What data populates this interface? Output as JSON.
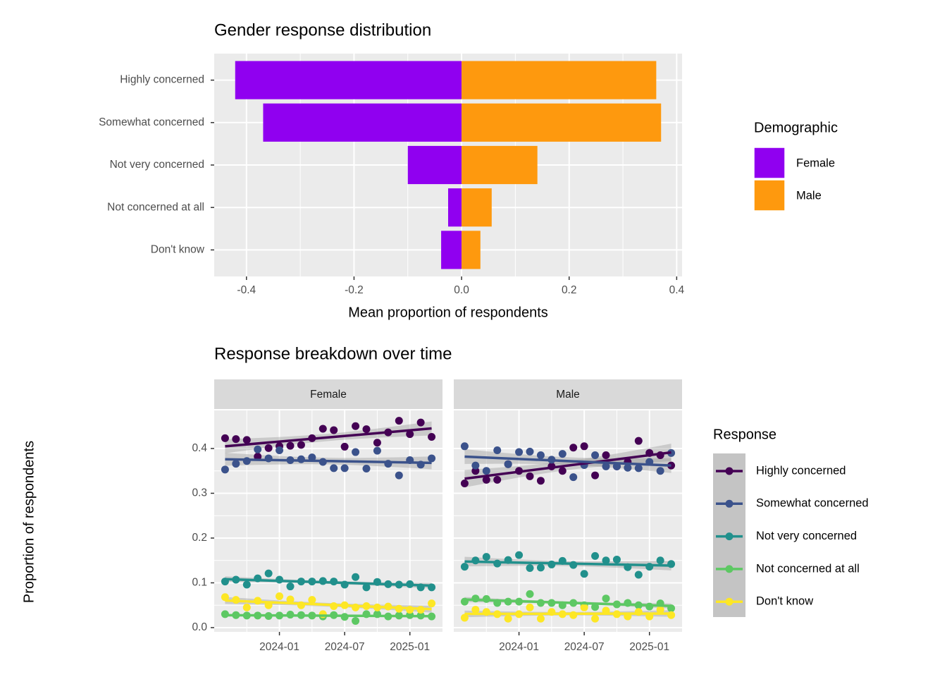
{
  "chart_data": [
    {
      "type": "bar",
      "orientation": "horizontal",
      "title": "Gender response distribution",
      "xlabel": "Mean proportion of respondents",
      "categories": [
        "Highly concerned",
        "Somewhat concerned",
        "Not very concerned",
        "Not concerned at all",
        "Don't know"
      ],
      "series": [
        {
          "name": "Female",
          "color": "#9000f0",
          "values": [
            -0.421,
            -0.369,
            -0.1,
            -0.025,
            -0.038
          ]
        },
        {
          "name": "Male",
          "color": "#fe990e",
          "values": [
            0.362,
            0.371,
            0.141,
            0.056,
            0.035
          ]
        }
      ],
      "xlim": [
        -0.46,
        0.41
      ],
      "xticks": [
        -0.4,
        -0.2,
        {
          "value": 0,
          "label": "0.0"
        },
        0.2,
        0.4
      ],
      "legend_title": "Demographic",
      "grid": true
    },
    {
      "type": "scatter",
      "title": "Response breakdown over time",
      "ylabel": "Proportion of respondents",
      "legend_title": "Response",
      "trend": "linear",
      "grid": true,
      "x": [
        "2023-08",
        "2023-09",
        "2023-10",
        "2023-11",
        "2023-12",
        "2024-01",
        "2024-02",
        "2024-03",
        "2024-04",
        "2024-05",
        "2024-06",
        "2024-07",
        "2024-08",
        "2024-09",
        "2024-10",
        "2024-11",
        "2024-12",
        "2025-01",
        "2025-02",
        "2025-03"
      ],
      "xlim": [
        "2023-07",
        "2025-04"
      ],
      "xticks": [
        "2024-01",
        "2024-07",
        "2025-01"
      ],
      "ylim": [
        -0.0095,
        0.485
      ],
      "yticks": [
        {
          "value": 0,
          "label": "0.0"
        },
        0.1,
        0.2,
        0.3,
        0.4
      ],
      "facets": [
        {
          "name": "Female",
          "series": [
            {
              "name": "Highly concerned",
              "color": "#440154",
              "values": [
                0.423,
                0.421,
                0.419,
                0.382,
                0.401,
                0.405,
                0.406,
                0.408,
                0.423,
                0.444,
                0.441,
                0.404,
                0.45,
                0.443,
                0.413,
                0.436,
                0.462,
                0.432,
                0.458,
                0.426
              ]
            },
            {
              "name": "Somewhat concerned",
              "color": "#3b528b",
              "values": [
                0.353,
                0.366,
                0.372,
                0.398,
                0.378,
                0.396,
                0.374,
                0.376,
                0.38,
                0.37,
                0.356,
                0.356,
                0.392,
                0.355,
                0.395,
                0.366,
                0.34,
                0.374,
                0.364,
                0.378
              ]
            },
            {
              "name": "Not very concerned",
              "color": "#21908c",
              "values": [
                0.103,
                0.107,
                0.096,
                0.11,
                0.121,
                0.107,
                0.092,
                0.103,
                0.103,
                0.104,
                0.103,
                0.096,
                0.113,
                0.09,
                0.102,
                0.097,
                0.096,
                0.097,
                0.09,
                0.09
              ]
            },
            {
              "name": "Not concerned at all",
              "color": "#5dc863",
              "values": [
                0.03,
                0.028,
                0.027,
                0.027,
                0.026,
                0.027,
                0.029,
                0.028,
                0.027,
                0.025,
                0.028,
                0.024,
                0.015,
                0.03,
                0.03,
                0.025,
                0.027,
                0.028,
                0.027,
                0.025
              ]
            },
            {
              "name": "Don't know",
              "color": "#fde725",
              "values": [
                0.068,
                0.062,
                0.045,
                0.06,
                0.05,
                0.07,
                0.063,
                0.05,
                0.062,
                0.03,
                0.048,
                0.05,
                0.045,
                0.048,
                0.045,
                0.047,
                0.042,
                0.04,
                0.04,
                0.054
              ]
            }
          ]
        },
        {
          "name": "Male",
          "series": [
            {
              "name": "Highly concerned",
              "color": "#440154",
              "values": [
                0.322,
                0.35,
                0.33,
                0.33,
                0.365,
                0.35,
                0.338,
                0.328,
                0.36,
                0.35,
                0.402,
                0.405,
                0.34,
                0.385,
                0.36,
                0.37,
                0.417,
                0.39,
                0.385,
                0.362
              ]
            },
            {
              "name": "Somewhat concerned",
              "color": "#3b528b",
              "values": [
                0.405,
                0.362,
                0.35,
                0.396,
                0.365,
                0.392,
                0.393,
                0.385,
                0.375,
                0.388,
                0.336,
                0.363,
                0.385,
                0.36,
                0.36,
                0.357,
                0.356,
                0.37,
                0.35,
                0.39
              ]
            },
            {
              "name": "Not very concerned",
              "color": "#21908c",
              "values": [
                0.136,
                0.15,
                0.158,
                0.143,
                0.151,
                0.162,
                0.133,
                0.134,
                0.141,
                0.149,
                0.14,
                0.12,
                0.16,
                0.15,
                0.152,
                0.135,
                0.118,
                0.136,
                0.15,
                0.142
              ]
            },
            {
              "name": "Not concerned at all",
              "color": "#5dc863",
              "values": [
                0.058,
                0.065,
                0.064,
                0.055,
                0.058,
                0.058,
                0.075,
                0.055,
                0.055,
                0.05,
                0.055,
                0.05,
                0.046,
                0.065,
                0.052,
                0.055,
                0.05,
                0.047,
                0.054,
                0.043
              ]
            },
            {
              "name": "Don't know",
              "color": "#fde725",
              "values": [
                0.022,
                0.04,
                0.035,
                0.03,
                0.02,
                0.03,
                0.045,
                0.02,
                0.035,
                0.03,
                0.028,
                0.045,
                0.02,
                0.038,
                0.03,
                0.025,
                0.035,
                0.025,
                0.04,
                0.028
              ]
            }
          ]
        }
      ]
    }
  ]
}
